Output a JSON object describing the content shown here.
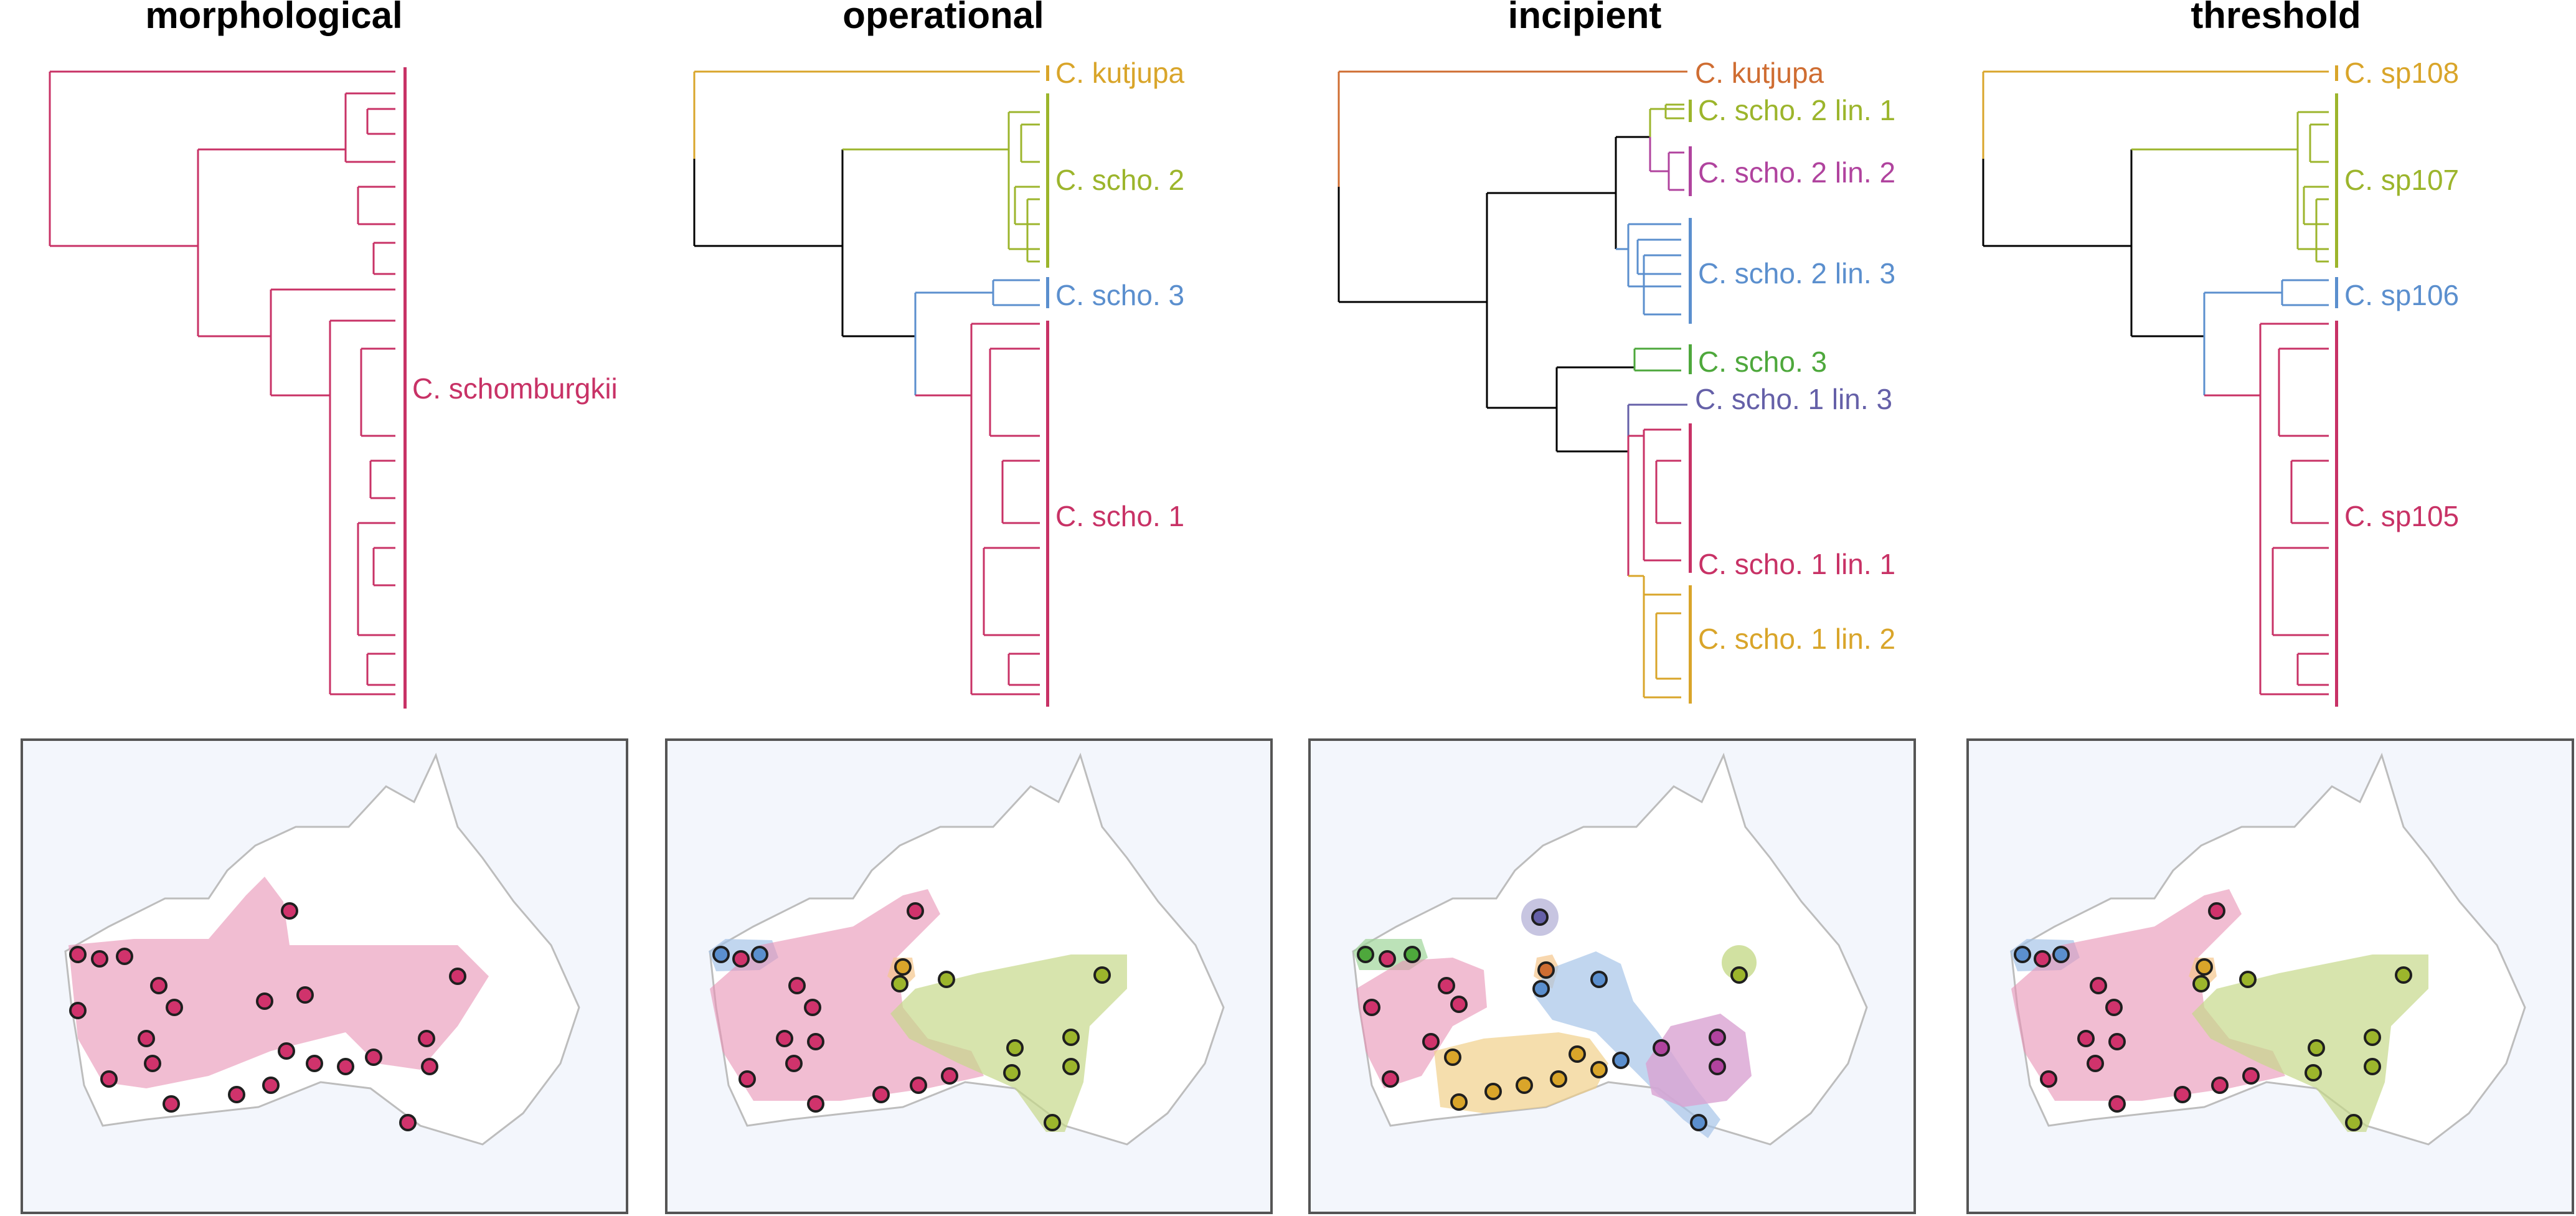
{
  "colors": {
    "pink": "#c83266",
    "yellow": "#d9a52a",
    "olive": "#9cb52c",
    "blue": "#5b8fce",
    "orange": "#cf6d32",
    "purple": "#b0439e",
    "green": "#4ea83c",
    "slate": "#6560a8",
    "black": "#000000"
  },
  "panels": [
    {
      "title": "morphological",
      "labels": [
        {
          "text": "C. schomburgkii",
          "color": "pink"
        }
      ]
    },
    {
      "title": "operational",
      "labels": [
        {
          "text": "C. kutjupa",
          "color": "yellow"
        },
        {
          "text": "C. scho. 2",
          "color": "olive"
        },
        {
          "text": "C. scho. 3",
          "color": "blue"
        },
        {
          "text": "C. scho. 1",
          "color": "pink"
        }
      ]
    },
    {
      "title": "incipient",
      "labels": [
        {
          "text": "C. kutjupa",
          "color": "orange"
        },
        {
          "text": "C. scho. 2 lin. 1",
          "color": "olive"
        },
        {
          "text": "C. scho. 2 lin. 2",
          "color": "purple"
        },
        {
          "text": "C. scho. 2 lin. 3",
          "color": "blue"
        },
        {
          "text": "C. scho. 3",
          "color": "green"
        },
        {
          "text": "C. scho. 1 lin. 3",
          "color": "slate"
        },
        {
          "text": "C. scho. 1 lin. 1",
          "color": "pink"
        },
        {
          "text": "C. scho. 1 lin. 2",
          "color": "yellow"
        }
      ]
    },
    {
      "title": "threshold",
      "labels": [
        {
          "text": "C. sp108",
          "color": "yellow"
        },
        {
          "text": "C. sp107",
          "color": "olive"
        },
        {
          "text": "C. sp106",
          "color": "blue"
        },
        {
          "text": "C. sp105",
          "color": "pink"
        }
      ]
    }
  ]
}
